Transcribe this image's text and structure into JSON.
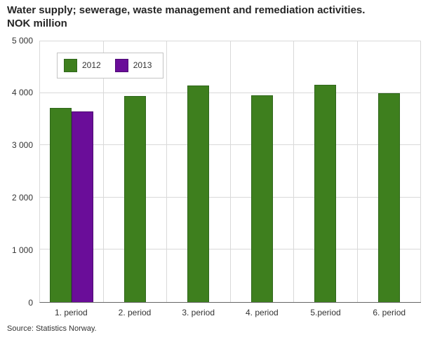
{
  "chart_data": {
    "type": "bar",
    "title": "Water supply; sewerage, waste management and remediation activities.",
    "subtitle": "NOK million",
    "categories": [
      "1. period",
      "2. period",
      "3. period",
      "4. period",
      "5.period",
      "6. period"
    ],
    "series": [
      {
        "name": "2012",
        "color": "#3e7f1e",
        "border_color": "#2f661b",
        "values": [
          3720,
          3950,
          4150,
          3960,
          4160,
          4000
        ]
      },
      {
        "name": "2013",
        "color": "#6a0d99",
        "border_color": "#4d0a73",
        "values": [
          3650,
          null,
          null,
          null,
          null,
          null
        ]
      }
    ],
    "ylim": [
      0,
      5000
    ],
    "yticks": [
      {
        "label": "0",
        "value": 0
      },
      {
        "label": "1 000",
        "value": 1000
      },
      {
        "label": "2 000",
        "value": 2000
      },
      {
        "label": "3 000",
        "value": 3000
      },
      {
        "label": "4 000",
        "value": 4000
      },
      {
        "label": "5 000",
        "value": 5000
      }
    ],
    "grid": true,
    "legend_position": "top-left",
    "source": "Source: Statistics Norway."
  }
}
